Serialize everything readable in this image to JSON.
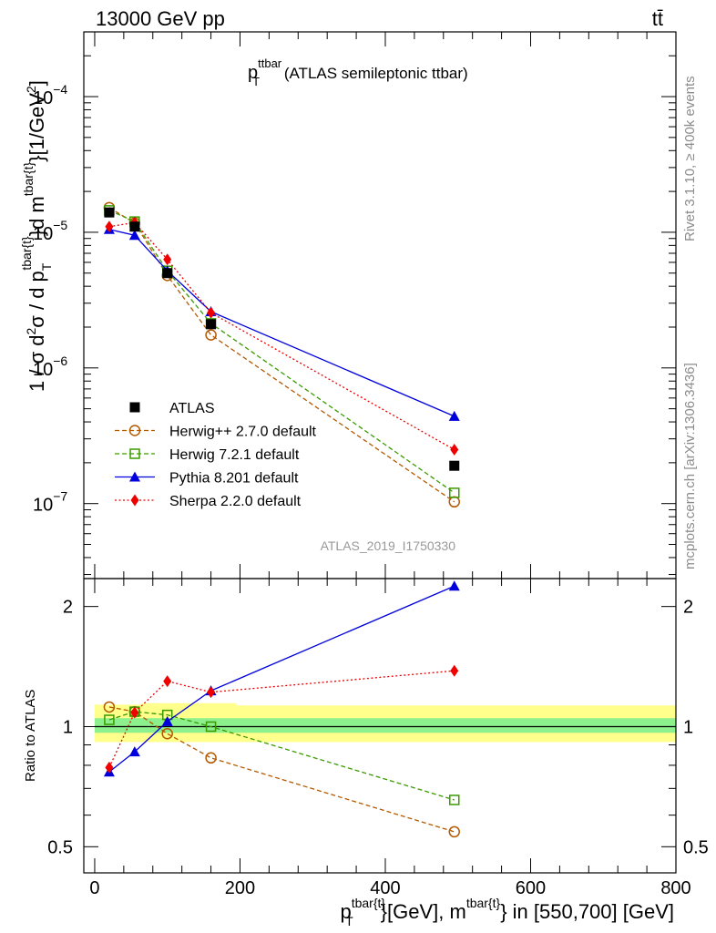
{
  "header": {
    "left": "13000 GeV pp",
    "right": "tt̄"
  },
  "side_labels": {
    "rivet": "Rivet 3.1.10, ≥ 400k events",
    "mcplots": "mcplots.cern.ch [arXiv:1306.3436]"
  },
  "chart_data": [
    {
      "type": "line",
      "panel": "main",
      "title_main": "p",
      "title_sup": "ttbar",
      "title_sub": "T",
      "title_rest": " (ATLAS semileptonic ttbar)",
      "ylabel": "1 / σ d²σ /  d p_T^{tbar{t}}d m^{tbar{t}}[1/GeV²]",
      "ylabel_parts": {
        "a": "1 / σ d",
        "a2": "2",
        "b": "σ /  d p",
        "sub_T": "T",
        "sup1": "tbar{t}",
        "c": "}d m",
        "sup2": "tbar{t}",
        "d": "}[1/GeV",
        "d2": "2",
        "e": "]"
      },
      "yscale": "log",
      "ylim": [
        2.8e-08,
        0.0003
      ],
      "xlim": [
        -15,
        800
      ],
      "y_ticks": [
        {
          "value": 1e-07,
          "base": "10",
          "exp": "−7"
        },
        {
          "value": 1e-06,
          "base": "10",
          "exp": "−6"
        },
        {
          "value": 1e-05,
          "base": "10",
          "exp": "−5"
        },
        {
          "value": 0.0001,
          "base": "10",
          "exp": "−4"
        }
      ],
      "watermark": "ATLAS_2019_I1750330",
      "legend_position": "bottom-left",
      "series": [
        {
          "name": "ATLAS",
          "color": "#000000",
          "marker": "square-filled",
          "line": "none",
          "x": [
            20,
            55,
            100,
            160,
            495
          ],
          "y": [
            1.4e-05,
            1.1e-05,
            5e-06,
            2.1e-06,
            1.9e-07
          ]
        },
        {
          "name": "Herwig++ 2.7.0 default",
          "color": "#b35900",
          "marker": "circle-open",
          "line": "dashed",
          "x": [
            20,
            55,
            100,
            160,
            495
          ],
          "y": [
            1.52e-05,
            1.17e-05,
            4.8e-06,
            1.75e-06,
            1.03e-07
          ]
        },
        {
          "name": "Herwig 7.2.1 default",
          "color": "#3a9a00",
          "marker": "square-open",
          "line": "dashed",
          "x": [
            20,
            55,
            100,
            160,
            495
          ],
          "y": [
            1.45e-05,
            1.2e-05,
            5.2e-06,
            2.13e-06,
            1.2e-07
          ]
        },
        {
          "name": "Pythia 8.201 default",
          "color": "#0000dd",
          "marker": "triangle-filled",
          "line": "solid",
          "x": [
            20,
            55,
            100,
            160,
            495
          ],
          "y": [
            1.05e-05,
            9.5e-06,
            5.2e-06,
            2.6e-06,
            4.4e-07
          ]
        },
        {
          "name": "Sherpa 2.2.0 default",
          "color": "#ee0000",
          "marker": "diamond-filled",
          "line": "dotted",
          "x": [
            20,
            55,
            100,
            160,
            495
          ],
          "y": [
            1.1e-05,
            1.18e-05,
            6.3e-06,
            2.55e-06,
            2.5e-07
          ]
        }
      ]
    },
    {
      "type": "line",
      "panel": "ratio",
      "ylabel": "Ratio to ATLAS",
      "xlabel_parts": {
        "p": "p",
        "sup1": "tbar{t}",
        "sub_T": "T",
        "mid": "}[GeV], m",
        "sup2": "tbar{t}",
        "end": "} in [550,700] [GeV]"
      },
      "yscale": "log",
      "ylim": [
        0.43,
        2.35
      ],
      "xlim": [
        -15,
        800
      ],
      "x_ticks": [
        0,
        200,
        400,
        600,
        800
      ],
      "y_ticks": [
        0.5,
        1,
        2
      ],
      "y_tick_labels": [
        "0.5",
        "1",
        "2"
      ],
      "bands": {
        "yellow": [
          {
            "x0": 0,
            "x1": 65,
            "lo": 0.915,
            "hi": 1.135
          },
          {
            "x0": 65,
            "x1": 195,
            "lo": 0.915,
            "hi": 1.145
          },
          {
            "x0": 195,
            "x1": 800,
            "lo": 0.915,
            "hi": 1.13
          }
        ],
        "green": [
          {
            "x0": 0,
            "x1": 800,
            "lo": 0.965,
            "hi": 1.05
          }
        ]
      },
      "series": [
        {
          "name": "Herwig++ 2.7.0 default",
          "x": [
            20,
            55,
            100,
            160,
            495
          ],
          "y": [
            1.12,
            1.09,
            0.96,
            0.835,
            0.545
          ]
        },
        {
          "name": "Herwig 7.2.1 default",
          "x": [
            20,
            55,
            100,
            160,
            495
          ],
          "y": [
            1.04,
            1.09,
            1.07,
            1.0,
            0.655
          ]
        },
        {
          "name": "Pythia 8.201 default",
          "x": [
            20,
            55,
            100,
            160,
            495
          ],
          "y": [
            0.77,
            0.865,
            1.03,
            1.23,
            2.25
          ]
        },
        {
          "name": "Sherpa 2.2.0 default",
          "x": [
            20,
            55,
            100,
            160,
            495
          ],
          "y": [
            0.79,
            1.085,
            1.3,
            1.22,
            1.38
          ]
        }
      ]
    }
  ]
}
